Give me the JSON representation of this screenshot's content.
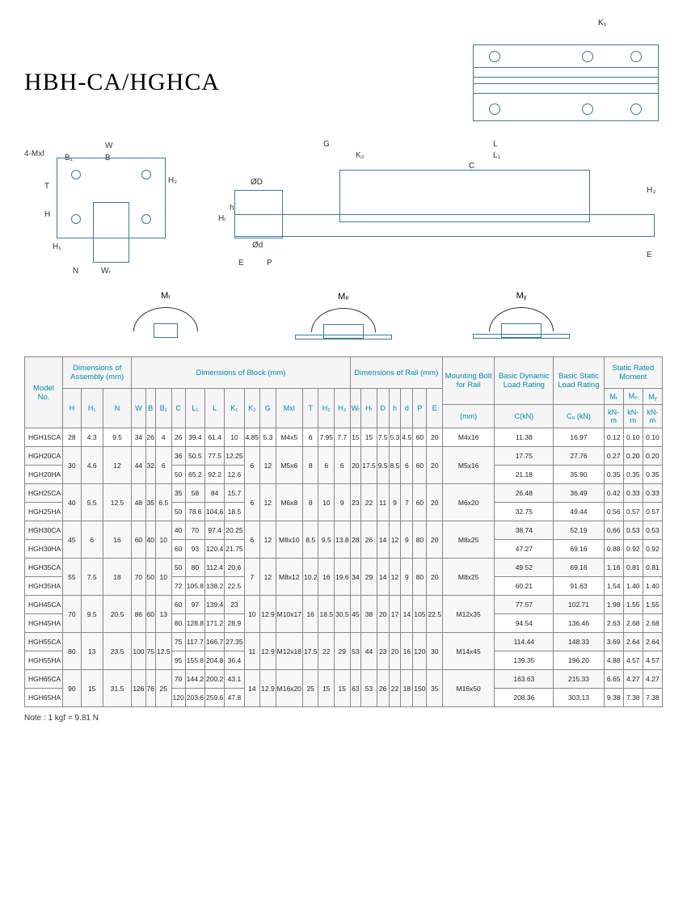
{
  "title": "HBH-CA/HGHCA",
  "note": "Note : 1 kgf = 9.81 N",
  "diagram_labels": {
    "K1": "K₁",
    "W": "W",
    "B": "B",
    "B1": "B₁",
    "4Mxl": "4-Mxl",
    "T": "T",
    "H2": "H₂",
    "H": "H",
    "H1": "H₁",
    "N": "N",
    "WR": "Wᵣ",
    "G": "G",
    "K2": "K₂",
    "L": "L",
    "L1": "L₁",
    "C": "C",
    "H3": "H₃",
    "OD": "ØD",
    "Od": "Ød",
    "HR": "Hᵣ",
    "h": "h",
    "E": "E",
    "P": "P",
    "MR": "Mᵣ",
    "MP": "Mₚ",
    "MY": "Mᵧ"
  },
  "headers": {
    "model": "Model No.",
    "assembly": "Dimensions of Assembly (mm)",
    "block": "Dimensions of Block (mm)",
    "rail": "Dimensions of Rail (mm)",
    "bolt": "Mounting Bolt for Rail",
    "dynamic": "Basic Dynamic Load Rating",
    "static": "Basic Static Load Rating",
    "moment": "Static Rated Moment",
    "sub": {
      "H": "H",
      "H1": "H₁",
      "N": "N",
      "W": "W",
      "B": "B",
      "B1": "B₁",
      "C": "C",
      "L1": "L₁",
      "L": "L",
      "K1": "K₁",
      "K2": "K₂",
      "G": "G",
      "Mxl": "Mxl",
      "T": "T",
      "H2": "H₂",
      "H3": "H₃",
      "WR": "Wᵣ",
      "HR": "Hᵣ",
      "D": "D",
      "h": "h",
      "d": "d",
      "P": "P",
      "E": "E",
      "mm": "(mm)",
      "CkN": "C(kN)",
      "C0kN": "C₀ (kN)",
      "MR": "Mᵣ",
      "MP": "Mₚ",
      "MY": "Mᵧ",
      "kNm": "kN-m"
    }
  },
  "rows": [
    {
      "m": "HGH15CA",
      "v": [
        "28",
        "4.3",
        "9.5",
        "34",
        "26",
        "4",
        "26",
        "39.4",
        "61.4",
        "10",
        "4.85",
        "5.3",
        "M4x5",
        "6",
        "7.95",
        "7.7",
        "15",
        "15",
        "7.5",
        "5.3",
        "4.5",
        "60",
        "20",
        "M4x16",
        "11.38",
        "16.97",
        "0.12",
        "0.10",
        "0.10"
      ]
    },
    {
      "m": "HGH20CA",
      "v": [
        "30",
        "4.6",
        "12",
        "44",
        "32",
        "6",
        "36",
        "50.5",
        "77.5",
        "12.25",
        "6",
        "12",
        "M5x6",
        "8",
        "6",
        "6",
        "20",
        "17.5",
        "9.5",
        "8.5",
        "6",
        "60",
        "20",
        "M5x16",
        "17.75",
        "27.76",
        "0.27",
        "0.20",
        "0.20"
      ],
      "span": 2,
      "spanCols": [
        0,
        1,
        2,
        3,
        4,
        5,
        10,
        11,
        12,
        13,
        14,
        15,
        16,
        17,
        18,
        19,
        20,
        21,
        22,
        23
      ]
    },
    {
      "m": "HGH20HA",
      "v": [
        "",
        "",
        "",
        "",
        "",
        "",
        "50",
        "65.2",
        "92.2",
        "12.6",
        "",
        "",
        "",
        "",
        "",
        "",
        "",
        "",
        "",
        "",
        "",
        "",
        "",
        "",
        "21.18",
        "35.90",
        "0.35",
        "0.35",
        "0.35"
      ],
      "skip": [
        0,
        1,
        2,
        3,
        4,
        5,
        10,
        11,
        12,
        13,
        14,
        15,
        16,
        17,
        18,
        19,
        20,
        21,
        22,
        23
      ]
    },
    {
      "m": "HGH25CA",
      "v": [
        "40",
        "5.5",
        "12.5",
        "48",
        "35",
        "6.5",
        "35",
        "58",
        "84",
        "15.7",
        "6",
        "12",
        "M6x8",
        "8",
        "10",
        "9",
        "23",
        "22",
        "11",
        "9",
        "7",
        "60",
        "20",
        "M6x20",
        "26.48",
        "36.49",
        "0.42",
        "0.33",
        "0.33"
      ],
      "span": 2,
      "spanCols": [
        0,
        1,
        2,
        3,
        4,
        5,
        10,
        11,
        12,
        13,
        14,
        15,
        16,
        17,
        18,
        19,
        20,
        21,
        22,
        23
      ]
    },
    {
      "m": "HGH25HA",
      "v": [
        "",
        "",
        "",
        "",
        "",
        "",
        "50",
        "78.6",
        "104.6",
        "18.5",
        "",
        "",
        "",
        "",
        "",
        "",
        "",
        "",
        "",
        "",
        "",
        "",
        "",
        "",
        "32.75",
        "49.44",
        "0.56",
        "0.57",
        "0.57"
      ],
      "skip": [
        0,
        1,
        2,
        3,
        4,
        5,
        10,
        11,
        12,
        13,
        14,
        15,
        16,
        17,
        18,
        19,
        20,
        21,
        22,
        23
      ]
    },
    {
      "m": "HGH30CA",
      "v": [
        "45",
        "6",
        "16",
        "60",
        "40",
        "10",
        "40",
        "70",
        "97.4",
        "20.25",
        "6",
        "12",
        "M8x10",
        "8.5",
        "9.5",
        "13.8",
        "28",
        "26",
        "14",
        "12",
        "9",
        "80",
        "20",
        "M8x25",
        "38.74",
        "52.19",
        "0.66",
        "0.53",
        "0.53"
      ],
      "span": 2,
      "spanCols": [
        0,
        1,
        2,
        3,
        4,
        5,
        10,
        11,
        12,
        13,
        14,
        15,
        16,
        17,
        18,
        19,
        20,
        21,
        22,
        23
      ]
    },
    {
      "m": "HGH30HA",
      "v": [
        "",
        "",
        "",
        "",
        "",
        "",
        "60",
        "93",
        "120.4",
        "21.75",
        "",
        "",
        "",
        "",
        "",
        "",
        "",
        "",
        "",
        "",
        "",
        "",
        "",
        "",
        "47.27",
        "69.16",
        "0.88",
        "0.92",
        "0.92"
      ],
      "skip": [
        0,
        1,
        2,
        3,
        4,
        5,
        10,
        11,
        12,
        13,
        14,
        15,
        16,
        17,
        18,
        19,
        20,
        21,
        22,
        23
      ]
    },
    {
      "m": "HGH35CA",
      "v": [
        "55",
        "7.5",
        "18",
        "70",
        "50",
        "10",
        "50",
        "80",
        "112.4",
        "20.6",
        "7",
        "12",
        "M8x12",
        "10.2",
        "16",
        "19.6",
        "34",
        "29",
        "14",
        "12",
        "9",
        "80",
        "20",
        "M8x25",
        "49.52",
        "69.16",
        "1.16",
        "0.81",
        "0.81"
      ],
      "span": 2,
      "spanCols": [
        0,
        1,
        2,
        3,
        4,
        5,
        10,
        11,
        12,
        13,
        14,
        15,
        16,
        17,
        18,
        19,
        20,
        21,
        22,
        23
      ]
    },
    {
      "m": "HGH35HA",
      "v": [
        "",
        "",
        "",
        "",
        "",
        "",
        "72",
        "105.8",
        "138.2",
        "22.5",
        "",
        "",
        "",
        "",
        "",
        "",
        "",
        "",
        "",
        "",
        "",
        "",
        "",
        "",
        "60.21",
        "91.63",
        "1.54",
        "1.40",
        "1.40"
      ],
      "skip": [
        0,
        1,
        2,
        3,
        4,
        5,
        10,
        11,
        12,
        13,
        14,
        15,
        16,
        17,
        18,
        19,
        20,
        21,
        22,
        23
      ]
    },
    {
      "m": "HGH45CA",
      "v": [
        "70",
        "9.5",
        "20.5",
        "86",
        "60",
        "13",
        "60",
        "97",
        "139.4",
        "23",
        "10",
        "12.9",
        "M10x17",
        "16",
        "18.5",
        "30.5",
        "45",
        "38",
        "20",
        "17",
        "14",
        "105",
        "22.5",
        "M12x35",
        "77.57",
        "102.71",
        "1.98",
        "1.55",
        "1.55"
      ],
      "span": 2,
      "spanCols": [
        0,
        1,
        2,
        3,
        4,
        5,
        10,
        11,
        12,
        13,
        14,
        15,
        16,
        17,
        18,
        19,
        20,
        21,
        22,
        23
      ]
    },
    {
      "m": "HGH45HA",
      "v": [
        "",
        "",
        "",
        "",
        "",
        "",
        "80",
        "128.8",
        "171.2",
        "28.9",
        "",
        "",
        "",
        "",
        "",
        "",
        "",
        "",
        "",
        "",
        "",
        "",
        "",
        "",
        "94.54",
        "136.46",
        "2.63",
        "2.68",
        "2.68"
      ],
      "skip": [
        0,
        1,
        2,
        3,
        4,
        5,
        10,
        11,
        12,
        13,
        14,
        15,
        16,
        17,
        18,
        19,
        20,
        21,
        22,
        23
      ]
    },
    {
      "m": "HGH55CA",
      "v": [
        "80",
        "13",
        "23.5",
        "100",
        "75",
        "12.5",
        "75",
        "117.7",
        "166.7",
        "27.35",
        "11",
        "12.9",
        "M12x18",
        "17.5",
        "22",
        "29",
        "53",
        "44",
        "23",
        "20",
        "16",
        "120",
        "30",
        "M14x45",
        "114.44",
        "148.33",
        "3.69",
        "2.64",
        "2.64"
      ],
      "span": 2,
      "spanCols": [
        0,
        1,
        2,
        3,
        4,
        5,
        10,
        11,
        12,
        13,
        14,
        15,
        16,
        17,
        18,
        19,
        20,
        21,
        22,
        23
      ]
    },
    {
      "m": "HGH55HA",
      "v": [
        "",
        "",
        "",
        "",
        "",
        "",
        "95",
        "155.8",
        "204.8",
        "36.4",
        "",
        "",
        "",
        "",
        "",
        "",
        "",
        "",
        "",
        "",
        "",
        "",
        "",
        "",
        "139.35",
        "196.20",
        "4.88",
        "4.57",
        "4.57"
      ],
      "skip": [
        0,
        1,
        2,
        3,
        4,
        5,
        10,
        11,
        12,
        13,
        14,
        15,
        16,
        17,
        18,
        19,
        20,
        21,
        22,
        23
      ]
    },
    {
      "m": "HGH65CA",
      "v": [
        "90",
        "15",
        "31.5",
        "126",
        "76",
        "25",
        "70",
        "144.2",
        "200.2",
        "43.1",
        "14",
        "12.9",
        "M16x20",
        "25",
        "15",
        "15",
        "63",
        "53",
        "26",
        "22",
        "18",
        "150",
        "35",
        "M16x50",
        "163.63",
        "215.33",
        "6.65",
        "4.27",
        "4.27"
      ],
      "span": 2,
      "spanCols": [
        0,
        1,
        2,
        3,
        4,
        5,
        10,
        11,
        12,
        13,
        14,
        15,
        16,
        17,
        18,
        19,
        20,
        21,
        22,
        23
      ]
    },
    {
      "m": "HGH65HA",
      "v": [
        "",
        "",
        "",
        "",
        "",
        "",
        "120",
        "203.6",
        "259.6",
        "47.8",
        "",
        "",
        "",
        "",
        "",
        "",
        "",
        "",
        "",
        "",
        "",
        "",
        "",
        "",
        "208.36",
        "303.13",
        "9.38",
        "7.38",
        "7.38"
      ],
      "skip": [
        0,
        1,
        2,
        3,
        4,
        5,
        10,
        11,
        12,
        13,
        14,
        15,
        16,
        17,
        18,
        19,
        20,
        21,
        22,
        23
      ]
    }
  ]
}
